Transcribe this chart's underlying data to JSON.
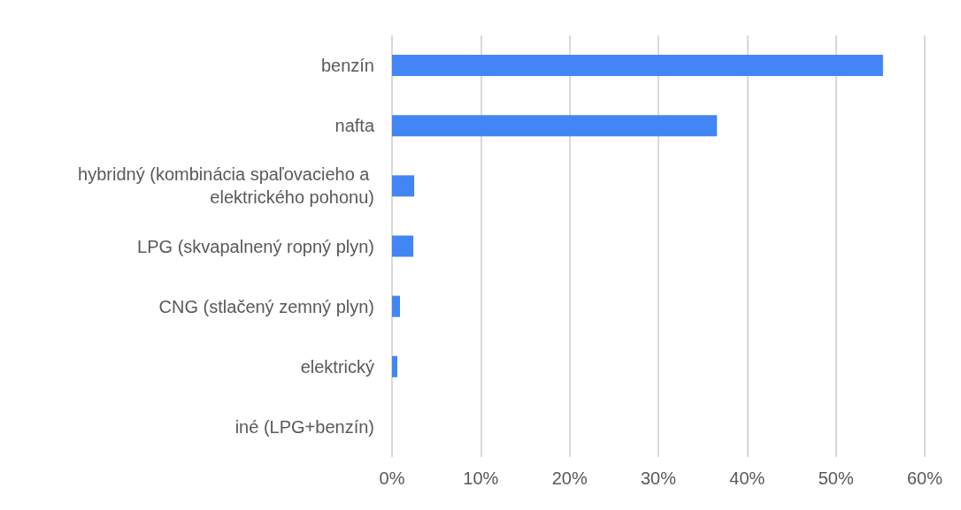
{
  "chart_data": {
    "type": "bar",
    "orientation": "horizontal",
    "categories": [
      "benzín",
      "nafta",
      "hybridný (kombinácia spaľovacieho a elektrického pohonu)",
      "LPG (skvapalnený ropný plyn)",
      "CNG (stlačený zemný plyn)",
      "elektrický",
      "iné (LPG+benzín)"
    ],
    "values": [
      55.3,
      36.6,
      2.5,
      2.4,
      0.9,
      0.6,
      0
    ],
    "color": "#4285f4",
    "xlim": [
      0,
      60
    ],
    "xticks": [
      {
        "value": 0,
        "label": "0%"
      },
      {
        "value": 10,
        "label": "10%"
      },
      {
        "value": 20,
        "label": "20%"
      },
      {
        "value": 30,
        "label": "30%"
      },
      {
        "value": 40,
        "label": "40%"
      },
      {
        "value": 50,
        "label": "50%"
      },
      {
        "value": 60,
        "label": "60%"
      }
    ],
    "grid": "x"
  }
}
